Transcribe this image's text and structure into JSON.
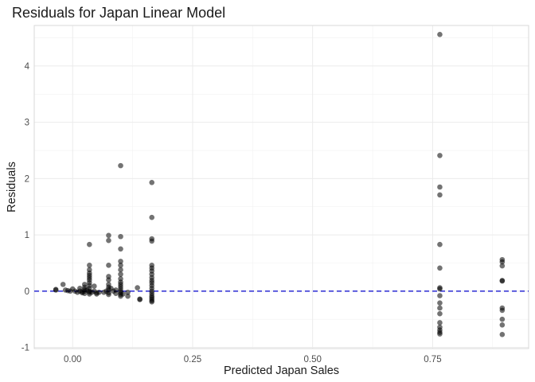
{
  "chart_data": {
    "type": "scatter",
    "title": "Residuals for Japan Linear Model",
    "xlabel": "Predicted Japan Sales",
    "ylabel": "Residuals",
    "xlim": [
      -0.08,
      0.95
    ],
    "ylim": [
      -1.02,
      4.72
    ],
    "x_ticks": [
      0.0,
      0.25,
      0.5,
      0.75
    ],
    "x_tick_labels": [
      "0.00",
      "0.25",
      "0.50",
      "0.75"
    ],
    "y_ticks": [
      -1,
      0,
      1,
      2,
      3,
      4
    ],
    "y_tick_labels": [
      "-1",
      "0",
      "1",
      "2",
      "3",
      "4"
    ],
    "grid": true,
    "reference_line": {
      "y": 0,
      "style": "dashed",
      "color": "#3b3bd6"
    },
    "point_color": "#000000",
    "point_opacity": 0.55,
    "points": [
      [
        -0.035,
        0.03
      ],
      [
        -0.035,
        0.02
      ],
      [
        -0.02,
        0.12
      ],
      [
        -0.015,
        0.02
      ],
      [
        -0.01,
        0.01
      ],
      [
        -0.005,
        0.0
      ],
      [
        0.0,
        0.04
      ],
      [
        0.005,
        0.0
      ],
      [
        0.01,
        -0.02
      ],
      [
        0.015,
        0.05
      ],
      [
        0.015,
        0.0
      ],
      [
        0.02,
        -0.01
      ],
      [
        0.02,
        -0.03
      ],
      [
        0.025,
        0.03
      ],
      [
        0.025,
        0.07
      ],
      [
        0.025,
        0.12
      ],
      [
        0.025,
        0.0
      ],
      [
        0.025,
        -0.04
      ],
      [
        0.03,
        0.02
      ],
      [
        0.035,
        0.05
      ],
      [
        0.035,
        0.1
      ],
      [
        0.035,
        0.15
      ],
      [
        0.035,
        0.2
      ],
      [
        0.035,
        0.24
      ],
      [
        0.035,
        0.28
      ],
      [
        0.035,
        0.32
      ],
      [
        0.035,
        0.38
      ],
      [
        0.035,
        0.46
      ],
      [
        0.035,
        0.83
      ],
      [
        0.035,
        -0.02
      ],
      [
        0.035,
        -0.05
      ],
      [
        0.035,
        0.0
      ],
      [
        0.04,
        -0.02
      ],
      [
        0.045,
        0.0
      ],
      [
        0.045,
        0.09
      ],
      [
        0.05,
        -0.03
      ],
      [
        0.05,
        -0.05
      ],
      [
        0.055,
        -0.02
      ],
      [
        0.065,
        -0.02
      ],
      [
        0.07,
        0.0
      ],
      [
        0.075,
        0.03
      ],
      [
        0.075,
        0.07
      ],
      [
        0.075,
        0.12
      ],
      [
        0.075,
        0.2
      ],
      [
        0.075,
        0.26
      ],
      [
        0.075,
        0.46
      ],
      [
        0.075,
        0.9
      ],
      [
        0.075,
        0.99
      ],
      [
        0.075,
        -0.03
      ],
      [
        0.075,
        -0.06
      ],
      [
        0.08,
        0.05
      ],
      [
        0.085,
        0.0
      ],
      [
        0.09,
        -0.04
      ],
      [
        0.09,
        0.02
      ],
      [
        0.1,
        0.0
      ],
      [
        0.1,
        0.04
      ],
      [
        0.1,
        0.08
      ],
      [
        0.1,
        0.12
      ],
      [
        0.1,
        0.16
      ],
      [
        0.1,
        0.22
      ],
      [
        0.1,
        0.3
      ],
      [
        0.1,
        0.38
      ],
      [
        0.1,
        0.46
      ],
      [
        0.1,
        0.53
      ],
      [
        0.1,
        0.75
      ],
      [
        0.1,
        0.97
      ],
      [
        0.1,
        2.23
      ],
      [
        0.1,
        -0.03
      ],
      [
        0.1,
        -0.06
      ],
      [
        0.1,
        -0.09
      ],
      [
        0.105,
        -0.05
      ],
      [
        0.115,
        -0.09
      ],
      [
        0.115,
        -0.02
      ],
      [
        0.135,
        0.06
      ],
      [
        0.14,
        -0.14
      ],
      [
        0.14,
        -0.15
      ],
      [
        0.165,
        0.0
      ],
      [
        0.165,
        0.05
      ],
      [
        0.165,
        0.1
      ],
      [
        0.165,
        0.15
      ],
      [
        0.165,
        0.19
      ],
      [
        0.165,
        0.24
      ],
      [
        0.165,
        0.3
      ],
      [
        0.165,
        0.36
      ],
      [
        0.165,
        0.41
      ],
      [
        0.165,
        0.46
      ],
      [
        0.165,
        0.89
      ],
      [
        0.165,
        0.93
      ],
      [
        0.165,
        1.31
      ],
      [
        0.165,
        1.93
      ],
      [
        0.165,
        -0.04
      ],
      [
        0.165,
        -0.08
      ],
      [
        0.165,
        -0.11
      ],
      [
        0.165,
        -0.14
      ],
      [
        0.165,
        -0.17
      ],
      [
        0.165,
        -0.19
      ],
      [
        0.765,
        4.56
      ],
      [
        0.765,
        2.41
      ],
      [
        0.765,
        1.85
      ],
      [
        0.765,
        1.71
      ],
      [
        0.765,
        0.83
      ],
      [
        0.765,
        0.41
      ],
      [
        0.765,
        0.06
      ],
      [
        0.765,
        0.04
      ],
      [
        0.765,
        -0.08
      ],
      [
        0.765,
        -0.21
      ],
      [
        0.765,
        -0.3
      ],
      [
        0.765,
        -0.4
      ],
      [
        0.765,
        -0.56
      ],
      [
        0.765,
        -0.64
      ],
      [
        0.765,
        -0.69
      ],
      [
        0.765,
        -0.73
      ],
      [
        0.765,
        -0.76
      ],
      [
        0.895,
        0.56
      ],
      [
        0.895,
        0.52
      ],
      [
        0.895,
        0.45
      ],
      [
        0.895,
        0.19
      ],
      [
        0.895,
        0.18
      ],
      [
        0.895,
        -0.3
      ],
      [
        0.895,
        -0.34
      ],
      [
        0.895,
        -0.5
      ],
      [
        0.895,
        -0.6
      ],
      [
        0.895,
        -0.77
      ]
    ]
  }
}
